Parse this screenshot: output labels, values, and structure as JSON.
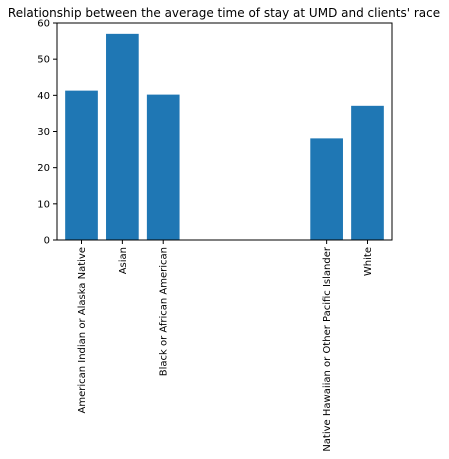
{
  "chart_data": {
    "type": "bar",
    "title": "Relationship between the average time of stay at UMD and clients' race",
    "xlabel": "",
    "ylabel": "",
    "categories": [
      "American Indian or Alaska Native",
      "Asian",
      "Black or African American",
      "Native Hawaiian or Other Pacific Islander",
      "White"
    ],
    "x_positions": [
      0,
      1,
      2,
      6,
      7
    ],
    "values": [
      41.3,
      57.0,
      40.2,
      28.1,
      37.1
    ],
    "ylim": [
      0,
      60
    ],
    "yticks": [
      0,
      10,
      20,
      30,
      40,
      50,
      60
    ],
    "grid": false,
    "legend": "none",
    "bar_color": "#1f77b4"
  }
}
